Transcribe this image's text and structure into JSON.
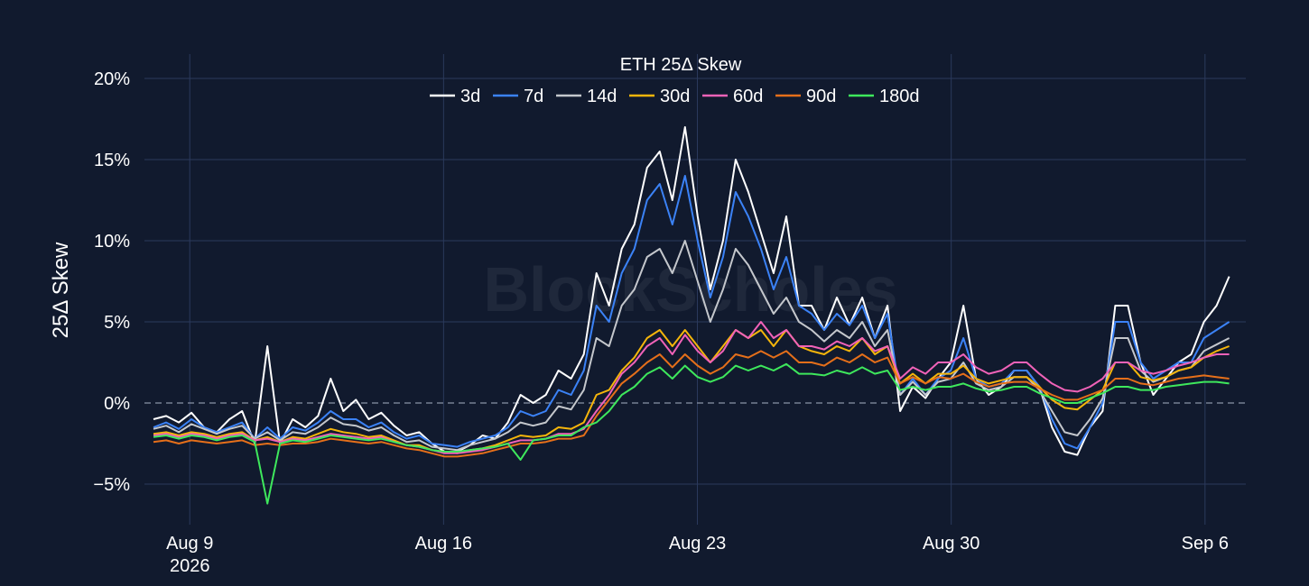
{
  "chart_data": {
    "type": "line",
    "title": "ETH 25Δ Skew",
    "ylabel": "25Δ Skew",
    "xlabel": "",
    "watermark": "BlockScholes",
    "x_start": "2026-08-08",
    "x_end": "2026-09-06T16:00",
    "x_range": [
      "2026-08-07T18:00",
      "2026-09-07T03:00"
    ],
    "ylim": [
      -7.5,
      21.5
    ],
    "y_unit": "%",
    "grid": true,
    "legend_position": "top-center",
    "zero_line": "dashed",
    "x_ticks": [
      {
        "date": "2026-08-09",
        "label": "Aug 9",
        "sublabel": "2026"
      },
      {
        "date": "2026-08-16",
        "label": "Aug 16",
        "sublabel": ""
      },
      {
        "date": "2026-08-23",
        "label": "Aug 23",
        "sublabel": ""
      },
      {
        "date": "2026-08-30",
        "label": "Aug 30",
        "sublabel": ""
      },
      {
        "date": "2026-09-06",
        "label": "Sep 6",
        "sublabel": ""
      }
    ],
    "y_ticks": [
      {
        "value": -5,
        "label": "−5%"
      },
      {
        "value": 0,
        "label": "0%"
      },
      {
        "value": 5,
        "label": "5%"
      },
      {
        "value": 10,
        "label": "10%"
      },
      {
        "value": 15,
        "label": "15%"
      },
      {
        "value": 20,
        "label": "20%"
      }
    ],
    "series": [
      {
        "name": "3d",
        "color": "#ffffff",
        "values": [
          -1.0,
          -0.8,
          -1.2,
          -0.6,
          -1.5,
          -1.8,
          -1.0,
          -0.5,
          -2.5,
          3.5,
          -2.5,
          -1.0,
          -1.5,
          -0.8,
          1.5,
          -0.5,
          0.2,
          -1.0,
          -0.6,
          -1.4,
          -2.0,
          -1.8,
          -2.5,
          -3.0,
          -3.0,
          -2.6,
          -2.0,
          -2.2,
          -1.2,
          0.5,
          0.0,
          0.5,
          2.0,
          1.5,
          3.0,
          8.0,
          6.0,
          9.5,
          11.0,
          14.5,
          15.5,
          12.5,
          17.0,
          11.5,
          7.0,
          10.0,
          15.0,
          13.0,
          10.5,
          8.0,
          11.5,
          6.0,
          6.0,
          4.5,
          6.5,
          4.8,
          6.5,
          4.0,
          6.0,
          -0.5,
          1.0,
          0.3,
          1.5,
          2.5,
          6.0,
          1.5,
          0.5,
          1.0,
          2.0,
          2.0,
          1.0,
          -1.5,
          -3.0,
          -3.2,
          -1.5,
          -0.5,
          6.0,
          6.0,
          2.5,
          0.5,
          1.5,
          2.5,
          3.0,
          5.0,
          6.0,
          7.8
        ]
      },
      {
        "name": "7d",
        "color": "#3b82f6",
        "values": [
          -1.5,
          -1.2,
          -1.6,
          -1.0,
          -1.5,
          -1.8,
          -1.5,
          -1.2,
          -2.2,
          -1.5,
          -2.2,
          -1.5,
          -1.7,
          -1.2,
          -0.5,
          -1.0,
          -1.0,
          -1.5,
          -1.2,
          -1.8,
          -2.2,
          -2.0,
          -2.5,
          -2.6,
          -2.7,
          -2.4,
          -2.2,
          -2.0,
          -1.5,
          -0.5,
          -0.8,
          -0.5,
          0.8,
          0.5,
          2.0,
          6.0,
          5.0,
          8.0,
          9.5,
          12.5,
          13.5,
          11.0,
          14.0,
          10.0,
          6.5,
          9.0,
          13.0,
          11.5,
          9.5,
          7.0,
          9.0,
          6.0,
          5.5,
          4.5,
          5.5,
          4.8,
          6.0,
          4.0,
          5.5,
          0.5,
          1.5,
          0.5,
          1.5,
          2.0,
          4.0,
          1.5,
          1.0,
          1.2,
          2.0,
          2.0,
          1.0,
          -1.0,
          -2.5,
          -2.8,
          -1.5,
          0.0,
          5.0,
          5.0,
          2.5,
          1.5,
          2.0,
          2.5,
          2.5,
          4.0,
          4.5,
          5.0
        ]
      },
      {
        "name": "14d",
        "color": "#c4c7cc",
        "values": [
          -1.6,
          -1.4,
          -1.8,
          -1.3,
          -1.6,
          -1.9,
          -1.6,
          -1.4,
          -2.2,
          -1.8,
          -2.3,
          -1.8,
          -1.9,
          -1.5,
          -0.9,
          -1.3,
          -1.4,
          -1.7,
          -1.5,
          -2.0,
          -2.4,
          -2.3,
          -2.7,
          -2.8,
          -2.9,
          -2.6,
          -2.4,
          -2.2,
          -1.8,
          -1.2,
          -1.4,
          -1.2,
          -0.2,
          -0.4,
          0.8,
          4.0,
          3.5,
          6.0,
          7.0,
          9.0,
          9.5,
          8.0,
          10.0,
          7.5,
          5.0,
          7.0,
          9.5,
          8.5,
          7.0,
          5.5,
          6.5,
          5.0,
          4.5,
          3.8,
          4.5,
          4.0,
          5.0,
          3.5,
          4.5,
          0.5,
          1.3,
          0.5,
          1.3,
          1.5,
          2.5,
          1.2,
          0.8,
          1.0,
          1.6,
          1.6,
          0.8,
          -0.5,
          -1.8,
          -2.0,
          -1.0,
          0.3,
          4.0,
          4.0,
          2.0,
          1.3,
          1.6,
          2.0,
          2.2,
          3.2,
          3.6,
          4.0
        ]
      },
      {
        "name": "30d",
        "color": "#f5b50b",
        "values": [
          -1.9,
          -1.8,
          -2.0,
          -1.8,
          -1.9,
          -2.1,
          -1.9,
          -1.8,
          -2.3,
          -2.1,
          -2.4,
          -2.1,
          -2.2,
          -1.9,
          -1.6,
          -1.8,
          -1.9,
          -2.1,
          -2.0,
          -2.3,
          -2.6,
          -2.6,
          -2.9,
          -3.0,
          -3.1,
          -2.9,
          -2.8,
          -2.6,
          -2.3,
          -2.0,
          -2.1,
          -2.0,
          -1.5,
          -1.6,
          -1.2,
          0.5,
          0.8,
          2.0,
          2.8,
          4.0,
          4.5,
          3.5,
          4.5,
          3.5,
          2.5,
          3.5,
          4.5,
          4.0,
          4.5,
          3.5,
          4.5,
          3.5,
          3.2,
          3.0,
          3.5,
          3.2,
          4.0,
          3.0,
          3.5,
          1.2,
          1.8,
          1.2,
          1.8,
          1.8,
          2.3,
          1.5,
          1.2,
          1.4,
          1.6,
          1.6,
          1.0,
          0.2,
          -0.3,
          -0.4,
          0.2,
          0.8,
          2.5,
          2.5,
          1.6,
          1.4,
          1.6,
          2.0,
          2.2,
          2.8,
          3.2,
          3.5
        ]
      },
      {
        "name": "60d",
        "color": "#f062b8",
        "values": [
          -2.0,
          -1.9,
          -2.1,
          -1.9,
          -2.0,
          -2.2,
          -2.0,
          -1.9,
          -2.3,
          -2.2,
          -2.4,
          -2.2,
          -2.3,
          -2.1,
          -1.9,
          -2.0,
          -2.1,
          -2.2,
          -2.1,
          -2.4,
          -2.6,
          -2.7,
          -2.9,
          -3.1,
          -3.1,
          -3.0,
          -2.9,
          -2.7,
          -2.5,
          -2.3,
          -2.3,
          -2.2,
          -1.9,
          -1.9,
          -1.6,
          -0.5,
          0.5,
          1.8,
          2.5,
          3.5,
          4.0,
          3.0,
          4.2,
          3.2,
          2.5,
          3.2,
          4.5,
          4.0,
          5.0,
          4.0,
          4.5,
          3.5,
          3.5,
          3.3,
          3.8,
          3.5,
          4.0,
          3.2,
          3.5,
          1.5,
          2.2,
          1.8,
          2.5,
          2.5,
          3.0,
          2.2,
          1.8,
          2.0,
          2.5,
          2.5,
          1.8,
          1.2,
          0.8,
          0.7,
          1.0,
          1.5,
          2.5,
          2.5,
          2.0,
          1.8,
          2.0,
          2.3,
          2.5,
          2.8,
          3.0,
          3.0
        ]
      },
      {
        "name": "90d",
        "color": "#e56f1a",
        "values": [
          -2.4,
          -2.3,
          -2.5,
          -2.3,
          -2.4,
          -2.5,
          -2.4,
          -2.3,
          -2.6,
          -2.5,
          -2.6,
          -2.5,
          -2.5,
          -2.4,
          -2.2,
          -2.3,
          -2.4,
          -2.5,
          -2.4,
          -2.6,
          -2.8,
          -2.9,
          -3.1,
          -3.3,
          -3.3,
          -3.2,
          -3.1,
          -2.9,
          -2.7,
          -2.5,
          -2.5,
          -2.4,
          -2.2,
          -2.2,
          -2.0,
          -0.8,
          0.2,
          1.2,
          1.8,
          2.5,
          3.0,
          2.2,
          3.0,
          2.3,
          1.8,
          2.2,
          3.0,
          2.8,
          3.2,
          2.8,
          3.2,
          2.5,
          2.5,
          2.3,
          2.8,
          2.5,
          3.0,
          2.5,
          2.8,
          1.2,
          1.6,
          1.2,
          1.6,
          1.5,
          1.8,
          1.3,
          1.0,
          1.2,
          1.3,
          1.3,
          0.9,
          0.5,
          0.2,
          0.2,
          0.5,
          0.8,
          1.5,
          1.5,
          1.2,
          1.1,
          1.3,
          1.5,
          1.6,
          1.7,
          1.6,
          1.5
        ]
      },
      {
        "name": "180d",
        "color": "#3ee85c",
        "values": [
          -2.1,
          -2.0,
          -2.2,
          -2.0,
          -2.1,
          -2.3,
          -2.1,
          -2.0,
          -2.4,
          -6.2,
          -2.5,
          -2.3,
          -2.4,
          -2.2,
          -2.0,
          -2.1,
          -2.2,
          -2.3,
          -2.2,
          -2.4,
          -2.6,
          -2.7,
          -2.9,
          -3.0,
          -3.0,
          -2.9,
          -2.8,
          -2.7,
          -2.5,
          -3.5,
          -2.3,
          -2.2,
          -2.0,
          -2.0,
          -1.5,
          -1.2,
          -0.5,
          0.5,
          1.0,
          1.8,
          2.2,
          1.5,
          2.3,
          1.6,
          1.3,
          1.6,
          2.3,
          2.0,
          2.3,
          2.0,
          2.4,
          1.8,
          1.8,
          1.7,
          2.0,
          1.8,
          2.2,
          1.8,
          2.0,
          0.8,
          1.0,
          0.8,
          1.0,
          1.0,
          1.2,
          0.9,
          0.7,
          0.8,
          1.0,
          1.0,
          0.6,
          0.3,
          0.0,
          0.0,
          0.3,
          0.6,
          1.0,
          1.0,
          0.8,
          0.8,
          1.0,
          1.1,
          1.2,
          1.3,
          1.3,
          1.2
        ]
      }
    ]
  }
}
